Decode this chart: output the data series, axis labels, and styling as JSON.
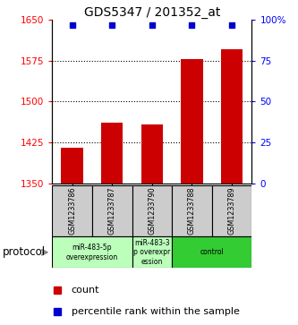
{
  "title": "GDS5347 / 201352_at",
  "samples": [
    "GSM1233786",
    "GSM1233787",
    "GSM1233790",
    "GSM1233788",
    "GSM1233789"
  ],
  "bar_values": [
    1415,
    1462,
    1458,
    1578,
    1595
  ],
  "bar_color": "#cc0000",
  "percentile_color": "#0000cc",
  "ylim_left": [
    1350,
    1650
  ],
  "ylim_right": [
    0,
    100
  ],
  "yticks_left": [
    1350,
    1425,
    1500,
    1575,
    1650
  ],
  "yticks_right": [
    0,
    25,
    50,
    75,
    100
  ],
  "groups": [
    {
      "indices": [
        0,
        1
      ],
      "label": "miR-483-5p\noverexpression",
      "color": "#bbffbb"
    },
    {
      "indices": [
        2
      ],
      "label": "miR-483-3\np overexpr\nession",
      "color": "#bbffbb"
    },
    {
      "indices": [
        3,
        4
      ],
      "label": "control",
      "color": "#33cc33"
    }
  ],
  "protocol_label": "protocol",
  "legend_count_label": "count",
  "legend_percentile_label": "percentile rank within the sample",
  "bar_width": 0.55,
  "sample_box_color": "#cccccc",
  "background_color": "#ffffff"
}
